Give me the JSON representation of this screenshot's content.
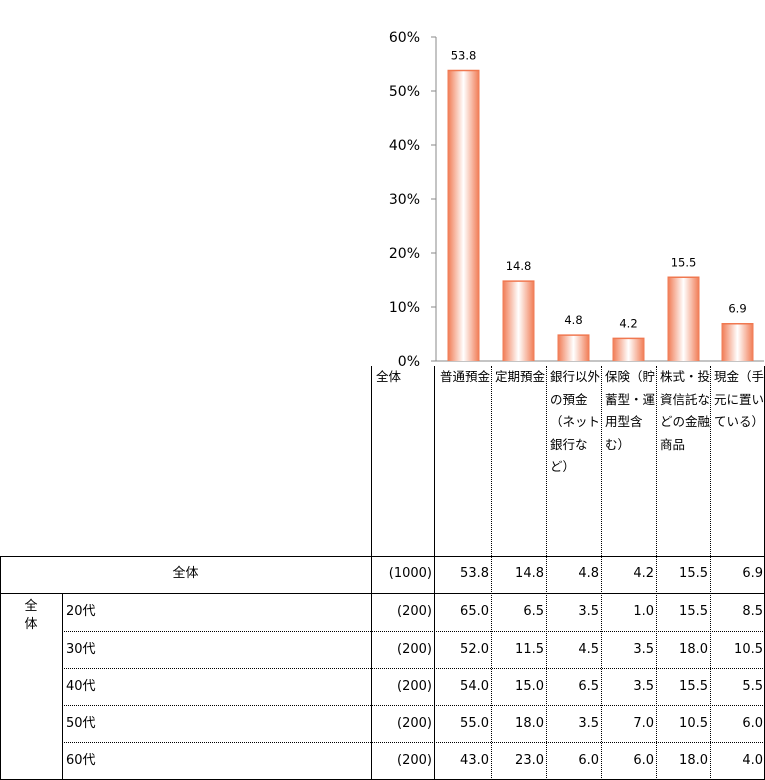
{
  "chart_data": {
    "type": "bar",
    "categories": [
      "普通預金",
      "定期預金",
      "銀行以外の預金（ネット銀行など）",
      "保険（貯蓄型・運用型含む）",
      "株式・投資信託などの金融商品",
      "現金（手元に置いている）"
    ],
    "values": [
      53.8,
      14.8,
      4.8,
      4.2,
      15.5,
      6.9
    ],
    "data_labels": [
      "53.8",
      "14.8",
      "4.8",
      "4.2",
      "15.5",
      "6.9"
    ],
    "ylim": [
      0,
      60
    ],
    "yticks": [
      "0%",
      "10%",
      "20%",
      "30%",
      "40%",
      "50%",
      "60%"
    ],
    "bar_color": "#f07850"
  },
  "table": {
    "total_header": "全体",
    "col_headers": [
      "普通預金",
      "定期預金",
      "銀行以外の預金（ネット銀行など）",
      "保険（貯蓄型・運用型含む）",
      "株式・投資信託などの金融商品",
      "現金（手元に置いている）"
    ],
    "total_row": {
      "label": "全体",
      "n": "(1000)",
      "values": [
        "53.8",
        "14.8",
        "4.8",
        "4.2",
        "15.5",
        "6.9"
      ]
    },
    "group_label": "全体",
    "rows": [
      {
        "label": "20代",
        "n": "(200)",
        "values": [
          "65.0",
          "6.5",
          "3.5",
          "1.0",
          "15.5",
          "8.5"
        ]
      },
      {
        "label": "30代",
        "n": "(200)",
        "values": [
          "52.0",
          "11.5",
          "4.5",
          "3.5",
          "18.0",
          "10.5"
        ]
      },
      {
        "label": "40代",
        "n": "(200)",
        "values": [
          "54.0",
          "15.0",
          "6.5",
          "3.5",
          "15.5",
          "5.5"
        ]
      },
      {
        "label": "50代",
        "n": "(200)",
        "values": [
          "55.0",
          "18.0",
          "3.5",
          "7.0",
          "10.5",
          "6.0"
        ]
      },
      {
        "label": "60代",
        "n": "(200)",
        "values": [
          "43.0",
          "23.0",
          "6.0",
          "6.0",
          "18.0",
          "4.0"
        ]
      }
    ]
  }
}
